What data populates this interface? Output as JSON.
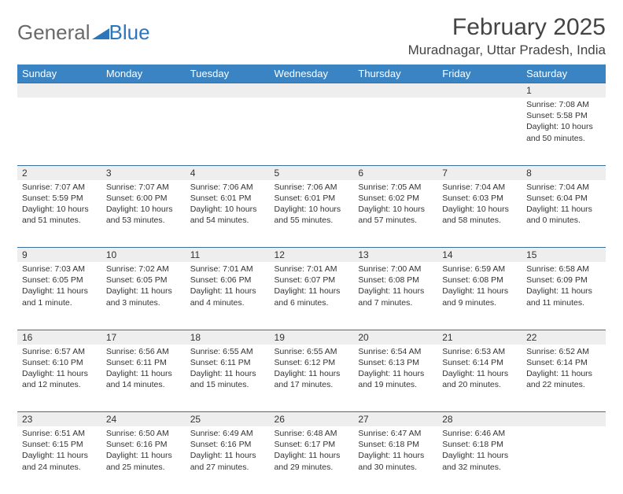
{
  "brand": {
    "word1": "General",
    "word2": "Blue"
  },
  "title": "February 2025",
  "location": "Muradnagar, Uttar Pradesh, India",
  "colors": {
    "header_bg": "#3b84c4",
    "header_text": "#ffffff",
    "daynum_bg": "#eeeeee",
    "rule": "#3b6f9e",
    "brand_gray": "#6a6a6a",
    "brand_blue": "#2c77bb",
    "text": "#333333",
    "page_bg": "#ffffff"
  },
  "day_headers": [
    "Sunday",
    "Monday",
    "Tuesday",
    "Wednesday",
    "Thursday",
    "Friday",
    "Saturday"
  ],
  "weeks": [
    {
      "nums": [
        "",
        "",
        "",
        "",
        "",
        "",
        "1"
      ],
      "cells": [
        {},
        {},
        {},
        {},
        {},
        {},
        {
          "sunrise": "Sunrise: 7:08 AM",
          "sunset": "Sunset: 5:58 PM",
          "day1": "Daylight: 10 hours",
          "day2": "and 50 minutes."
        }
      ]
    },
    {
      "nums": [
        "2",
        "3",
        "4",
        "5",
        "6",
        "7",
        "8"
      ],
      "cells": [
        {
          "sunrise": "Sunrise: 7:07 AM",
          "sunset": "Sunset: 5:59 PM",
          "day1": "Daylight: 10 hours",
          "day2": "and 51 minutes."
        },
        {
          "sunrise": "Sunrise: 7:07 AM",
          "sunset": "Sunset: 6:00 PM",
          "day1": "Daylight: 10 hours",
          "day2": "and 53 minutes."
        },
        {
          "sunrise": "Sunrise: 7:06 AM",
          "sunset": "Sunset: 6:01 PM",
          "day1": "Daylight: 10 hours",
          "day2": "and 54 minutes."
        },
        {
          "sunrise": "Sunrise: 7:06 AM",
          "sunset": "Sunset: 6:01 PM",
          "day1": "Daylight: 10 hours",
          "day2": "and 55 minutes."
        },
        {
          "sunrise": "Sunrise: 7:05 AM",
          "sunset": "Sunset: 6:02 PM",
          "day1": "Daylight: 10 hours",
          "day2": "and 57 minutes."
        },
        {
          "sunrise": "Sunrise: 7:04 AM",
          "sunset": "Sunset: 6:03 PM",
          "day1": "Daylight: 10 hours",
          "day2": "and 58 minutes."
        },
        {
          "sunrise": "Sunrise: 7:04 AM",
          "sunset": "Sunset: 6:04 PM",
          "day1": "Daylight: 11 hours",
          "day2": "and 0 minutes."
        }
      ]
    },
    {
      "nums": [
        "9",
        "10",
        "11",
        "12",
        "13",
        "14",
        "15"
      ],
      "cells": [
        {
          "sunrise": "Sunrise: 7:03 AM",
          "sunset": "Sunset: 6:05 PM",
          "day1": "Daylight: 11 hours",
          "day2": "and 1 minute."
        },
        {
          "sunrise": "Sunrise: 7:02 AM",
          "sunset": "Sunset: 6:05 PM",
          "day1": "Daylight: 11 hours",
          "day2": "and 3 minutes."
        },
        {
          "sunrise": "Sunrise: 7:01 AM",
          "sunset": "Sunset: 6:06 PM",
          "day1": "Daylight: 11 hours",
          "day2": "and 4 minutes."
        },
        {
          "sunrise": "Sunrise: 7:01 AM",
          "sunset": "Sunset: 6:07 PM",
          "day1": "Daylight: 11 hours",
          "day2": "and 6 minutes."
        },
        {
          "sunrise": "Sunrise: 7:00 AM",
          "sunset": "Sunset: 6:08 PM",
          "day1": "Daylight: 11 hours",
          "day2": "and 7 minutes."
        },
        {
          "sunrise": "Sunrise: 6:59 AM",
          "sunset": "Sunset: 6:08 PM",
          "day1": "Daylight: 11 hours",
          "day2": "and 9 minutes."
        },
        {
          "sunrise": "Sunrise: 6:58 AM",
          "sunset": "Sunset: 6:09 PM",
          "day1": "Daylight: 11 hours",
          "day2": "and 11 minutes."
        }
      ]
    },
    {
      "nums": [
        "16",
        "17",
        "18",
        "19",
        "20",
        "21",
        "22"
      ],
      "cells": [
        {
          "sunrise": "Sunrise: 6:57 AM",
          "sunset": "Sunset: 6:10 PM",
          "day1": "Daylight: 11 hours",
          "day2": "and 12 minutes."
        },
        {
          "sunrise": "Sunrise: 6:56 AM",
          "sunset": "Sunset: 6:11 PM",
          "day1": "Daylight: 11 hours",
          "day2": "and 14 minutes."
        },
        {
          "sunrise": "Sunrise: 6:55 AM",
          "sunset": "Sunset: 6:11 PM",
          "day1": "Daylight: 11 hours",
          "day2": "and 15 minutes."
        },
        {
          "sunrise": "Sunrise: 6:55 AM",
          "sunset": "Sunset: 6:12 PM",
          "day1": "Daylight: 11 hours",
          "day2": "and 17 minutes."
        },
        {
          "sunrise": "Sunrise: 6:54 AM",
          "sunset": "Sunset: 6:13 PM",
          "day1": "Daylight: 11 hours",
          "day2": "and 19 minutes."
        },
        {
          "sunrise": "Sunrise: 6:53 AM",
          "sunset": "Sunset: 6:14 PM",
          "day1": "Daylight: 11 hours",
          "day2": "and 20 minutes."
        },
        {
          "sunrise": "Sunrise: 6:52 AM",
          "sunset": "Sunset: 6:14 PM",
          "day1": "Daylight: 11 hours",
          "day2": "and 22 minutes."
        }
      ]
    },
    {
      "nums": [
        "23",
        "24",
        "25",
        "26",
        "27",
        "28",
        ""
      ],
      "cells": [
        {
          "sunrise": "Sunrise: 6:51 AM",
          "sunset": "Sunset: 6:15 PM",
          "day1": "Daylight: 11 hours",
          "day2": "and 24 minutes."
        },
        {
          "sunrise": "Sunrise: 6:50 AM",
          "sunset": "Sunset: 6:16 PM",
          "day1": "Daylight: 11 hours",
          "day2": "and 25 minutes."
        },
        {
          "sunrise": "Sunrise: 6:49 AM",
          "sunset": "Sunset: 6:16 PM",
          "day1": "Daylight: 11 hours",
          "day2": "and 27 minutes."
        },
        {
          "sunrise": "Sunrise: 6:48 AM",
          "sunset": "Sunset: 6:17 PM",
          "day1": "Daylight: 11 hours",
          "day2": "and 29 minutes."
        },
        {
          "sunrise": "Sunrise: 6:47 AM",
          "sunset": "Sunset: 6:18 PM",
          "day1": "Daylight: 11 hours",
          "day2": "and 30 minutes."
        },
        {
          "sunrise": "Sunrise: 6:46 AM",
          "sunset": "Sunset: 6:18 PM",
          "day1": "Daylight: 11 hours",
          "day2": "and 32 minutes."
        },
        {}
      ]
    }
  ]
}
